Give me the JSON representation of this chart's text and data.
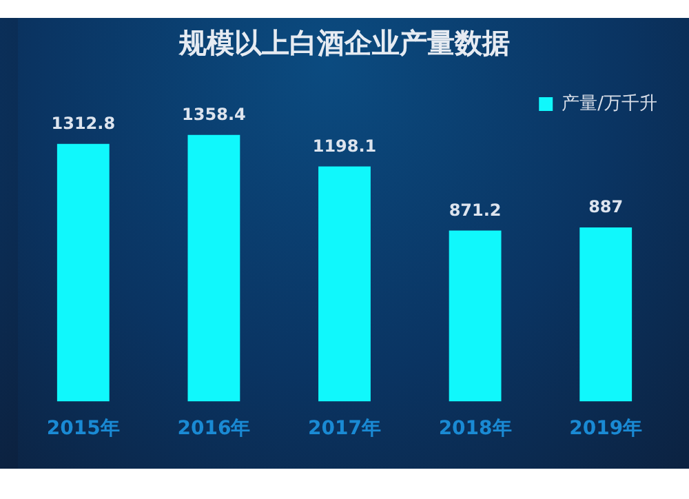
{
  "chart_data": {
    "type": "bar",
    "title": "规模以上白酒企业产量数据",
    "categories": [
      "2015年",
      "2016年",
      "2017年",
      "2018年",
      "2019年"
    ],
    "series": [
      {
        "name": "产量/万千升",
        "color": "#10f8fc",
        "values": [
          1312.8,
          1358.4,
          1198.1,
          871.2,
          887
        ]
      }
    ],
    "data_labels": true,
    "legend": "top right",
    "grid": false
  }
}
